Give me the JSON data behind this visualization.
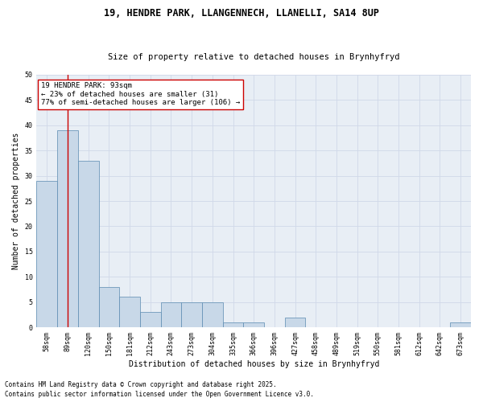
{
  "title_line1": "19, HENDRE PARK, LLANGENNECH, LLANELLI, SA14 8UP",
  "title_line2": "Size of property relative to detached houses in Brynhyfryd",
  "xlabel": "Distribution of detached houses by size in Brynhyfryd",
  "ylabel": "Number of detached properties",
  "categories": [
    "58sqm",
    "89sqm",
    "120sqm",
    "150sqm",
    "181sqm",
    "212sqm",
    "243sqm",
    "273sqm",
    "304sqm",
    "335sqm",
    "366sqm",
    "396sqm",
    "427sqm",
    "458sqm",
    "489sqm",
    "519sqm",
    "550sqm",
    "581sqm",
    "612sqm",
    "642sqm",
    "673sqm"
  ],
  "values": [
    29,
    39,
    33,
    8,
    6,
    3,
    5,
    5,
    5,
    1,
    1,
    0,
    2,
    0,
    0,
    0,
    0,
    0,
    0,
    0,
    1
  ],
  "bar_color": "#c8d8e8",
  "bar_edge_color": "#5a8ab0",
  "grid_color": "#d0d8e8",
  "background_color": "#e8eef5",
  "annotation_line1": "19 HENDRE PARK: 93sqm",
  "annotation_line2": "← 23% of detached houses are smaller (31)",
  "annotation_line3": "77% of semi-detached houses are larger (106) →",
  "vline_position": 1.0,
  "vline_color": "#cc0000",
  "annotation_box_facecolor": "#ffffff",
  "annotation_box_edgecolor": "#cc0000",
  "ylim": [
    0,
    50
  ],
  "yticks": [
    0,
    5,
    10,
    15,
    20,
    25,
    30,
    35,
    40,
    45,
    50
  ],
  "footer_line1": "Contains HM Land Registry data © Crown copyright and database right 2025.",
  "footer_line2": "Contains public sector information licensed under the Open Government Licence v3.0.",
  "title_fontsize": 8.5,
  "subtitle_fontsize": 7.5,
  "axis_label_fontsize": 7,
  "tick_fontsize": 6,
  "annotation_fontsize": 6.5,
  "footer_fontsize": 5.5,
  "ylabel_fontsize": 7
}
